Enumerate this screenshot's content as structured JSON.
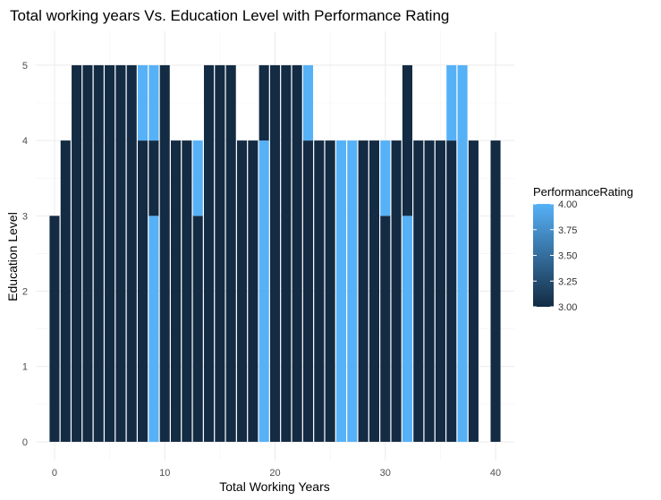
{
  "chart_data": {
    "type": "bar",
    "title": "Total working years Vs. Education Level with Performance Rating",
    "xlabel": "Total Working Years",
    "ylabel": "Education Level",
    "xlim": [
      -1.7,
      41.7
    ],
    "ylim": [
      -0.25,
      5.45
    ],
    "xticks": [
      0,
      10,
      20,
      30,
      40
    ],
    "yticks": [
      0,
      1,
      2,
      3,
      4,
      5
    ],
    "grid": true,
    "legend": {
      "title": "PerformanceRating",
      "position": "right",
      "range": [
        3.0,
        4.0
      ],
      "ticks": [
        "4.00",
        "3.75",
        "3.50",
        "3.25",
        "3.00"
      ],
      "color_low": "#132b43",
      "color_high": "#56b1f7"
    },
    "bars": [
      {
        "x": 0,
        "segments": [
          {
            "value": 3,
            "rating": 3
          }
        ]
      },
      {
        "x": 1,
        "segments": [
          {
            "value": 4,
            "rating": 3
          }
        ]
      },
      {
        "x": 2,
        "segments": [
          {
            "value": 5,
            "rating": 3
          }
        ]
      },
      {
        "x": 3,
        "segments": [
          {
            "value": 5,
            "rating": 3
          }
        ]
      },
      {
        "x": 4,
        "segments": [
          {
            "value": 5,
            "rating": 3
          }
        ]
      },
      {
        "x": 5,
        "segments": [
          {
            "value": 5,
            "rating": 3
          }
        ]
      },
      {
        "x": 6,
        "segments": [
          {
            "value": 5,
            "rating": 3
          }
        ]
      },
      {
        "x": 7,
        "segments": [
          {
            "value": 5,
            "rating": 3
          }
        ]
      },
      {
        "x": 8,
        "segments": [
          {
            "value": 4,
            "rating": 3
          },
          {
            "value": 1,
            "rating": 4
          }
        ]
      },
      {
        "x": 9,
        "segments": [
          {
            "value": 3,
            "rating": 4
          },
          {
            "value": 1,
            "rating": 3
          },
          {
            "value": 1,
            "rating": 4
          }
        ]
      },
      {
        "x": 10,
        "segments": [
          {
            "value": 5,
            "rating": 3
          }
        ]
      },
      {
        "x": 11,
        "segments": [
          {
            "value": 4,
            "rating": 3
          }
        ]
      },
      {
        "x": 12,
        "segments": [
          {
            "value": 4,
            "rating": 3
          }
        ]
      },
      {
        "x": 13,
        "segments": [
          {
            "value": 3,
            "rating": 3
          },
          {
            "value": 1,
            "rating": 4
          }
        ]
      },
      {
        "x": 14,
        "segments": [
          {
            "value": 5,
            "rating": 3
          }
        ]
      },
      {
        "x": 15,
        "segments": [
          {
            "value": 5,
            "rating": 3
          }
        ]
      },
      {
        "x": 16,
        "segments": [
          {
            "value": 5,
            "rating": 3
          }
        ]
      },
      {
        "x": 17,
        "segments": [
          {
            "value": 4,
            "rating": 3
          }
        ]
      },
      {
        "x": 18,
        "segments": [
          {
            "value": 4,
            "rating": 3
          }
        ]
      },
      {
        "x": 19,
        "segments": [
          {
            "value": 4,
            "rating": 4
          },
          {
            "value": 1,
            "rating": 3
          }
        ]
      },
      {
        "x": 20,
        "segments": [
          {
            "value": 5,
            "rating": 3
          }
        ]
      },
      {
        "x": 21,
        "segments": [
          {
            "value": 5,
            "rating": 3
          }
        ]
      },
      {
        "x": 22,
        "segments": [
          {
            "value": 5,
            "rating": 3
          }
        ]
      },
      {
        "x": 23,
        "segments": [
          {
            "value": 4,
            "rating": 3
          },
          {
            "value": 1,
            "rating": 4
          }
        ]
      },
      {
        "x": 24,
        "segments": [
          {
            "value": 4,
            "rating": 3
          }
        ]
      },
      {
        "x": 25,
        "segments": [
          {
            "value": 4,
            "rating": 3
          }
        ]
      },
      {
        "x": 26,
        "segments": [
          {
            "value": 4,
            "rating": 4
          }
        ]
      },
      {
        "x": 27,
        "segments": [
          {
            "value": 4,
            "rating": 4
          }
        ]
      },
      {
        "x": 28,
        "segments": [
          {
            "value": 4,
            "rating": 3
          }
        ]
      },
      {
        "x": 29,
        "segments": [
          {
            "value": 4,
            "rating": 3
          }
        ]
      },
      {
        "x": 30,
        "segments": [
          {
            "value": 3,
            "rating": 3
          },
          {
            "value": 1,
            "rating": 4
          }
        ]
      },
      {
        "x": 31,
        "segments": [
          {
            "value": 4,
            "rating": 3
          }
        ]
      },
      {
        "x": 32,
        "segments": [
          {
            "value": 3,
            "rating": 4
          },
          {
            "value": 2,
            "rating": 3
          }
        ]
      },
      {
        "x": 33,
        "segments": [
          {
            "value": 4,
            "rating": 3
          }
        ]
      },
      {
        "x": 34,
        "segments": [
          {
            "value": 4,
            "rating": 3
          }
        ]
      },
      {
        "x": 35,
        "segments": [
          {
            "value": 4,
            "rating": 3
          }
        ]
      },
      {
        "x": 36,
        "segments": [
          {
            "value": 4,
            "rating": 3
          },
          {
            "value": 1,
            "rating": 4
          }
        ]
      },
      {
        "x": 37,
        "segments": [
          {
            "value": 5,
            "rating": 4
          }
        ]
      },
      {
        "x": 38,
        "segments": [
          {
            "value": 4,
            "rating": 3
          }
        ]
      },
      {
        "x": 40,
        "segments": [
          {
            "value": 4,
            "rating": 3
          }
        ]
      }
    ]
  }
}
